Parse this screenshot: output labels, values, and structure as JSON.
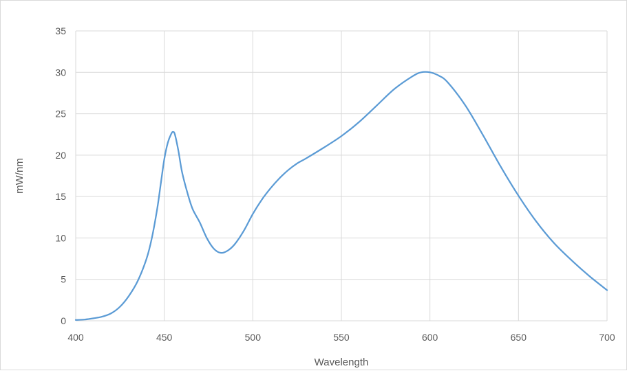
{
  "chart_data": {
    "type": "line",
    "title": "",
    "xlabel": "Wavelength",
    "ylabel": "mW/nm",
    "xlim": [
      400,
      700
    ],
    "ylim": [
      0,
      35
    ],
    "x_ticks": [
      400,
      450,
      500,
      550,
      600,
      650,
      700
    ],
    "y_ticks": [
      0,
      5,
      10,
      15,
      20,
      25,
      30,
      35
    ],
    "grid": true,
    "legend": "none",
    "line_color": "#5b9bd5",
    "grid_color": "#d9d9d9",
    "series": [
      {
        "x": [
          400,
          405,
          410,
          415,
          420,
          425,
          430,
          435,
          440,
          443,
          446,
          448,
          450,
          452,
          454,
          455,
          456,
          458,
          460,
          463,
          466,
          470,
          474,
          478,
          482,
          486,
          490,
          495,
          500,
          505,
          510,
          515,
          520,
          525,
          530,
          540,
          550,
          560,
          570,
          580,
          590,
          595,
          600,
          605,
          610,
          620,
          630,
          640,
          650,
          660,
          670,
          680,
          690,
          700
        ],
        "y": [
          0.1,
          0.15,
          0.3,
          0.5,
          0.9,
          1.7,
          3.0,
          4.8,
          7.5,
          10.0,
          13.5,
          16.5,
          19.5,
          21.5,
          22.6,
          22.8,
          22.5,
          20.5,
          18.0,
          15.5,
          13.5,
          11.9,
          10.0,
          8.7,
          8.2,
          8.5,
          9.3,
          10.9,
          12.9,
          14.6,
          16.0,
          17.2,
          18.2,
          19.0,
          19.6,
          20.9,
          22.3,
          24.0,
          26.0,
          28.0,
          29.5,
          30.0,
          30.0,
          29.6,
          28.8,
          26.0,
          22.4,
          18.6,
          15.1,
          12.0,
          9.4,
          7.3,
          5.4,
          3.7
        ]
      }
    ]
  }
}
